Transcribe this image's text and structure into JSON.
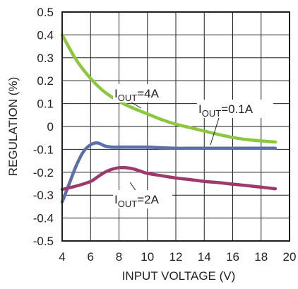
{
  "chart_data": {
    "type": "line",
    "xlabel": "INPUT VOLTAGE (V)",
    "ylabel": "REGULATION  (%)",
    "xlim": [
      4,
      20
    ],
    "ylim": [
      -0.5,
      0.5
    ],
    "xticks": [
      4,
      6,
      8,
      10,
      12,
      14,
      16,
      18,
      20
    ],
    "yticks": [
      0.5,
      0.4,
      0.3,
      0.2,
      0.1,
      0,
      -0.1,
      -0.2,
      -0.3,
      -0.4,
      -0.5
    ],
    "xtick_labels": [
      "4",
      "6",
      "8",
      "10",
      "12",
      "14",
      "16",
      "18",
      "20"
    ],
    "ytick_labels": [
      "0.5",
      "0.4",
      "0.3",
      "0.2",
      "0.1",
      "0",
      "-0.1",
      "-0.2",
      "-0.3",
      "-0.4",
      "-0.5"
    ],
    "grid": true,
    "colors": {
      "4A": "#8dc63f",
      "0.1A": "#5b6fa8",
      "2A": "#9e3a6b"
    },
    "series": [
      {
        "name": "IOUT=4A",
        "x": [
          4,
          5,
          6,
          7,
          8,
          9,
          10,
          11,
          12,
          13,
          14,
          15,
          16,
          17,
          18,
          19
        ],
        "y": [
          0.4,
          0.29,
          0.21,
          0.15,
          0.11,
          0.08,
          0.055,
          0.03,
          0.01,
          -0.005,
          -0.02,
          -0.035,
          -0.048,
          -0.057,
          -0.063,
          -0.068
        ]
      },
      {
        "name": "IOUT=0.1A",
        "x": [
          4,
          4.5,
          5,
          5.5,
          6,
          6.5,
          7,
          7.5,
          8,
          9,
          10,
          11,
          12,
          13,
          14,
          15,
          16,
          17,
          18,
          19
        ],
        "y": [
          -0.33,
          -0.25,
          -0.17,
          -0.11,
          -0.08,
          -0.072,
          -0.085,
          -0.09,
          -0.09,
          -0.09,
          -0.09,
          -0.093,
          -0.095,
          -0.095,
          -0.095,
          -0.095,
          -0.095,
          -0.095,
          -0.095,
          -0.095
        ]
      },
      {
        "name": "IOUT=2A",
        "x": [
          4,
          5,
          6,
          6.5,
          7,
          7.5,
          8,
          8.5,
          9,
          9.5,
          10,
          11,
          12,
          13,
          14,
          15,
          16,
          17,
          18,
          19
        ],
        "y": [
          -0.275,
          -0.26,
          -0.24,
          -0.22,
          -0.2,
          -0.187,
          -0.18,
          -0.18,
          -0.185,
          -0.195,
          -0.205,
          -0.215,
          -0.225,
          -0.232,
          -0.24,
          -0.245,
          -0.252,
          -0.258,
          -0.265,
          -0.272
        ]
      }
    ],
    "annotations": [
      {
        "id": "4A",
        "prefix": "I",
        "sub": "OUT",
        "suffix": "=4A"
      },
      {
        "id": "0.1A",
        "prefix": "I",
        "sub": "OUT",
        "suffix": "=0.1A"
      },
      {
        "id": "2A",
        "prefix": "I",
        "sub": "OUT",
        "suffix": "=2A"
      }
    ]
  }
}
